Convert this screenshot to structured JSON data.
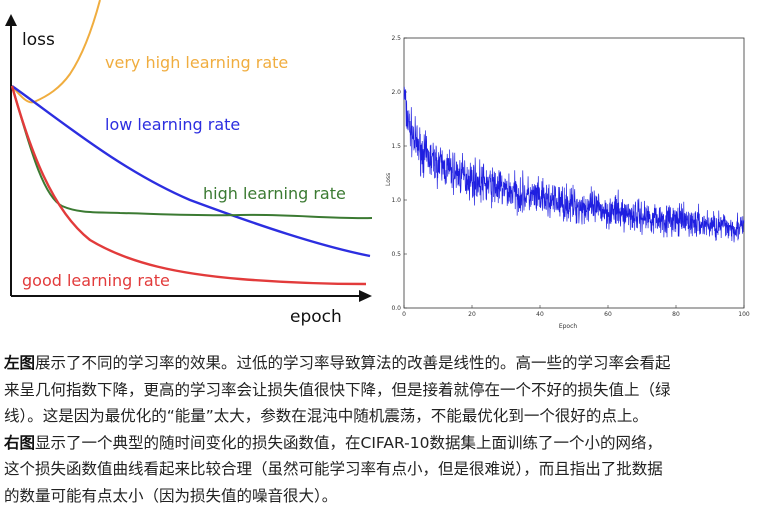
{
  "chart_data": [
    {
      "type": "line",
      "xlabel": "epoch",
      "ylabel": "loss",
      "series": [
        {
          "name": "very high learning rate",
          "color": "#f0ad3f",
          "shape": "diverging: brief dip then sharp rise",
          "x": [
            0,
            0.03,
            0.06,
            0.1,
            0.14,
            0.18,
            0.22,
            0.25
          ],
          "y": [
            0.62,
            0.56,
            0.58,
            0.64,
            0.72,
            0.84,
            1.0,
            1.12
          ]
        },
        {
          "name": "low learning rate",
          "color": "#2c2ee0",
          "shape": "slow near-linear decrease",
          "x": [
            0,
            0.1,
            0.2,
            0.3,
            0.4,
            0.5,
            0.6,
            0.7,
            0.8,
            0.9,
            1.0
          ],
          "y": [
            0.62,
            0.52,
            0.44,
            0.37,
            0.31,
            0.26,
            0.22,
            0.18,
            0.15,
            0.12,
            0.1
          ]
        },
        {
          "name": "high learning rate",
          "color": "#3b7a32",
          "shape": "fast drop then plateau at a poor loss",
          "x": [
            0,
            0.05,
            0.1,
            0.15,
            0.2,
            0.3,
            0.5,
            0.7,
            0.9,
            1.0
          ],
          "y": [
            0.62,
            0.48,
            0.33,
            0.27,
            0.25,
            0.245,
            0.24,
            0.235,
            0.23,
            0.23
          ]
        },
        {
          "name": "good learning rate",
          "color": "#e23b3b",
          "shape": "fast drop converging to the lowest loss",
          "x": [
            0,
            0.05,
            0.1,
            0.15,
            0.2,
            0.3,
            0.4,
            0.5,
            0.6,
            0.7,
            0.8,
            0.9,
            1.0
          ],
          "y": [
            0.62,
            0.46,
            0.32,
            0.22,
            0.16,
            0.1,
            0.075,
            0.06,
            0.05,
            0.045,
            0.04,
            0.035,
            0.033
          ]
        }
      ]
    },
    {
      "type": "line",
      "xlabel": "Epoch",
      "ylabel": "Loss",
      "xlim": [
        0,
        100
      ],
      "ylim": [
        0.0,
        2.5
      ],
      "xticks": [
        "0",
        "20",
        "40",
        "60",
        "80",
        "100"
      ],
      "yticks": [
        "0.0",
        "0.5",
        "1.0",
        "1.5",
        "2.0",
        "2.5"
      ],
      "series": [
        {
          "color": "#1f1fe0",
          "shape": "noisy decreasing trend",
          "x": [
            0,
            1,
            3,
            6,
            10,
            15,
            20,
            30,
            40,
            50,
            60,
            70,
            80,
            90,
            100
          ],
          "y": [
            1.95,
            1.75,
            1.55,
            1.42,
            1.33,
            1.25,
            1.19,
            1.09,
            1.01,
            0.95,
            0.9,
            0.85,
            0.81,
            0.77,
            0.74
          ]
        }
      ]
    }
  ],
  "caption": [
    {
      "bold": "左图",
      "text": "展示了不同的学习率的效果。过低的学习率导致算法的改善是线性的。高一些的学习率会看起"
    },
    {
      "bold": "",
      "text": "来呈几何指数下降，更高的学习率会让损失值很快下降，但是接着就停在一个不好的损失值上（绿"
    },
    {
      "bold": "",
      "text": "线）。这是因为最优化的“能量”太大，参数在混沌中随机震荡，不能最优化到一个很好的点上。"
    },
    {
      "bold": "右图",
      "text": "显示了一个典型的随时间变化的损失函数值，在CIFAR-10数据集上面训练了一个小的网络，"
    },
    {
      "bold": "",
      "text": "这个损失函数值曲线看起来比较合理（虽然可能学习率有点小，但是很难说），而且指出了批数据"
    },
    {
      "bold": "",
      "text": "的数量可能有点太小（因为损失值的噪音很大）。"
    }
  ]
}
